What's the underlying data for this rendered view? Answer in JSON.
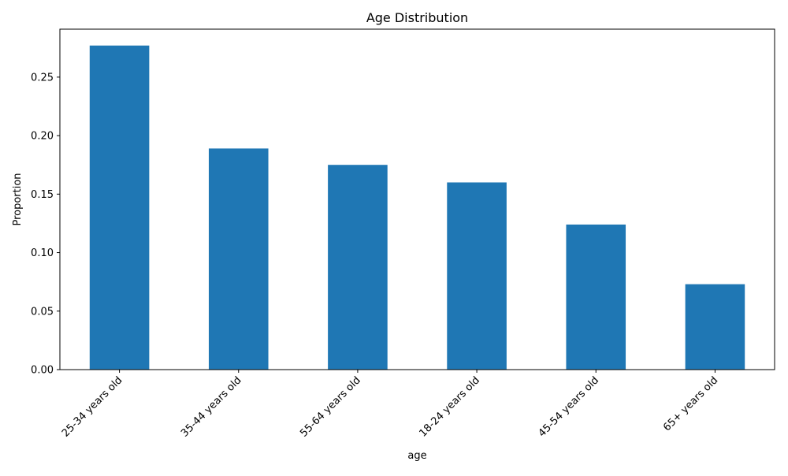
{
  "chart_data": {
    "type": "bar",
    "title": "Age Distribution",
    "xlabel": "age",
    "ylabel": "Proportion",
    "categories": [
      "25-34 years old",
      "35-44 years old",
      "55-64 years old",
      "18-24 years old",
      "45-54 years old",
      "65+ years old"
    ],
    "values": [
      0.277,
      0.189,
      0.175,
      0.16,
      0.124,
      0.073
    ],
    "ylim": [
      0,
      0.291
    ],
    "yticks": [
      0.0,
      0.05,
      0.1,
      0.15,
      0.2,
      0.25
    ],
    "ytick_labels": [
      "0.00",
      "0.05",
      "0.10",
      "0.15",
      "0.20",
      "0.25"
    ],
    "grid": false,
    "legend": "none",
    "bar_color": "#1f77b4"
  }
}
